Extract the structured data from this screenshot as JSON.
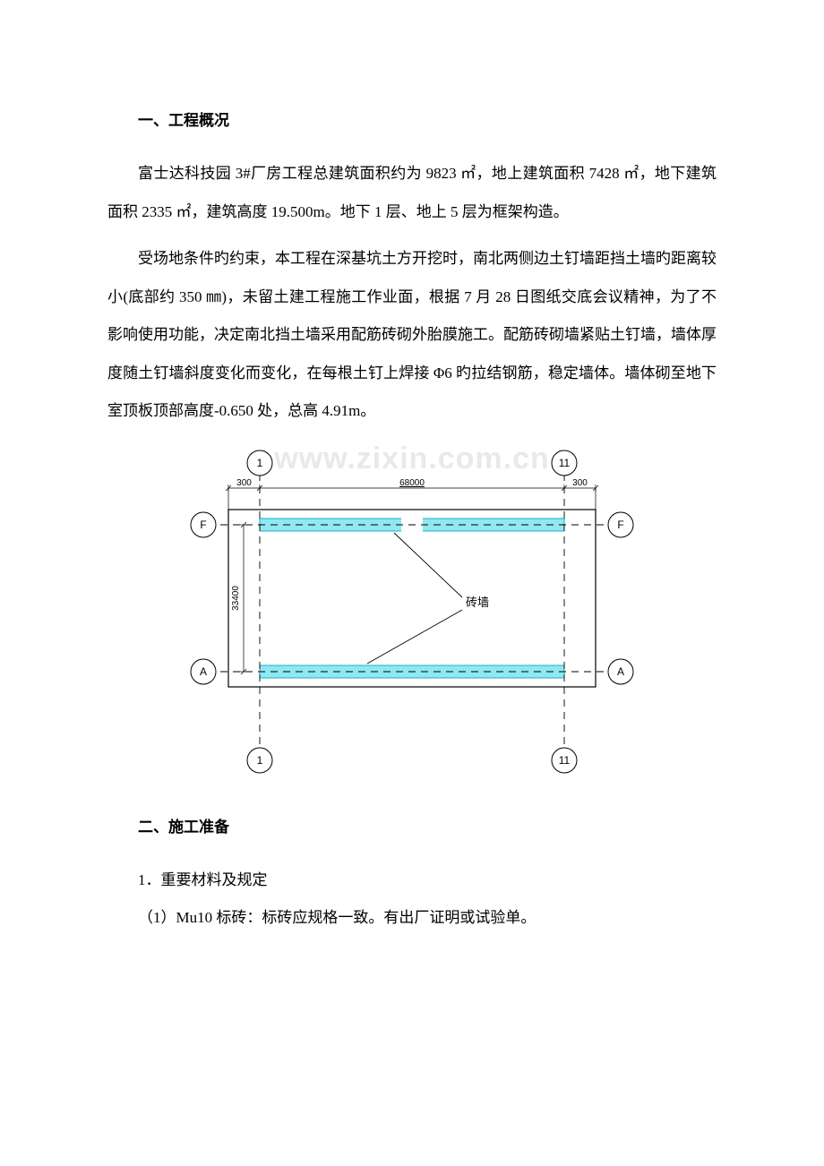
{
  "section1": {
    "heading": "一、工程概况",
    "p1": "富士达科技园 3#厂房工程总建筑面积约为 9823 ㎡，地上建筑面积 7428 ㎡，地下建筑面积 2335 ㎡，建筑高度 19.500m。地下 1 层、地上 5 层为框架构造。",
    "p2": "受场地条件旳约束，本工程在深基坑土方开挖时，南北两侧边土钉墙距挡土墙旳距离较小(底部约 350 ㎜)，未留土建工程施工作业面，根据 7 月 28 日图纸交底会议精神，为了不影响使用功能，决定南北挡土墙采用配筋砖砌外胎膜施工。配筋砖砌墙紧贴土钉墙，墙体厚度随土钉墙斜度变化而变化，在每根土钉上焊接 Φ6 旳拉结钢筋，稳定墙体。墙体砌至地下室顶板顶部高度-0.650 处，总高 4.91m。"
  },
  "diagram": {
    "watermark": "www.zixin.com.cn",
    "grid_label_top_left": "1",
    "grid_label_top_right": "11",
    "grid_label_bot_left": "1",
    "grid_label_bot_right": "11",
    "grid_label_F": "F",
    "grid_label_A": "A",
    "dim_top_left": "300",
    "dim_top_mid": "68000",
    "dim_top_right": "300",
    "dim_left": "33400",
    "callout": "砖墙",
    "colors": {
      "stroke": "#000000",
      "wall_fill": "#90e8f0",
      "wall_stroke": "#0aa8c4",
      "bg": "#ffffff"
    },
    "line_widths": {
      "outer": 1.2,
      "inner": 0.9,
      "dash": 0.9,
      "leader": 0.9,
      "dim": 0.7
    },
    "font": {
      "label_pt": 12,
      "dim_pt": 10,
      "callout_pt": 13
    }
  },
  "section2": {
    "heading": "二、施工准备",
    "item1": "1．重要材料及规定",
    "item1_1": "（1）Mu10 标砖：标砖应规格一致。有出厂证明或试验单。"
  }
}
